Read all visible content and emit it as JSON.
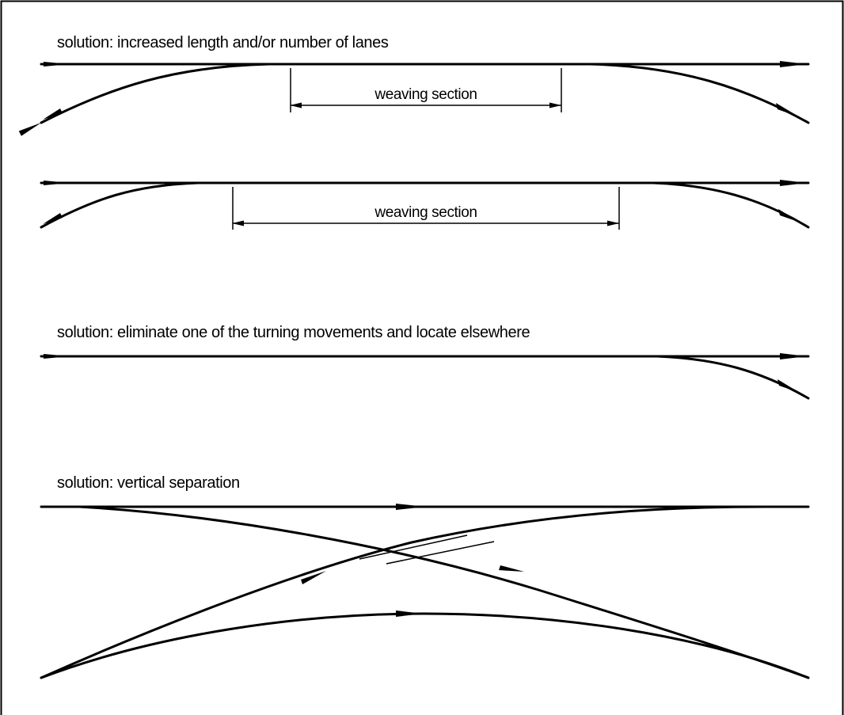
{
  "diagram": {
    "headings": {
      "lanes": "solution: increased length and/or number of lanes",
      "eliminate": "solution: eliminate one of the turning movements and locate elsewhere",
      "vertical": "solution: vertical separation"
    },
    "dimension_labels": {
      "weaving_1": "weaving section",
      "weaving_2": "weaving section"
    }
  }
}
